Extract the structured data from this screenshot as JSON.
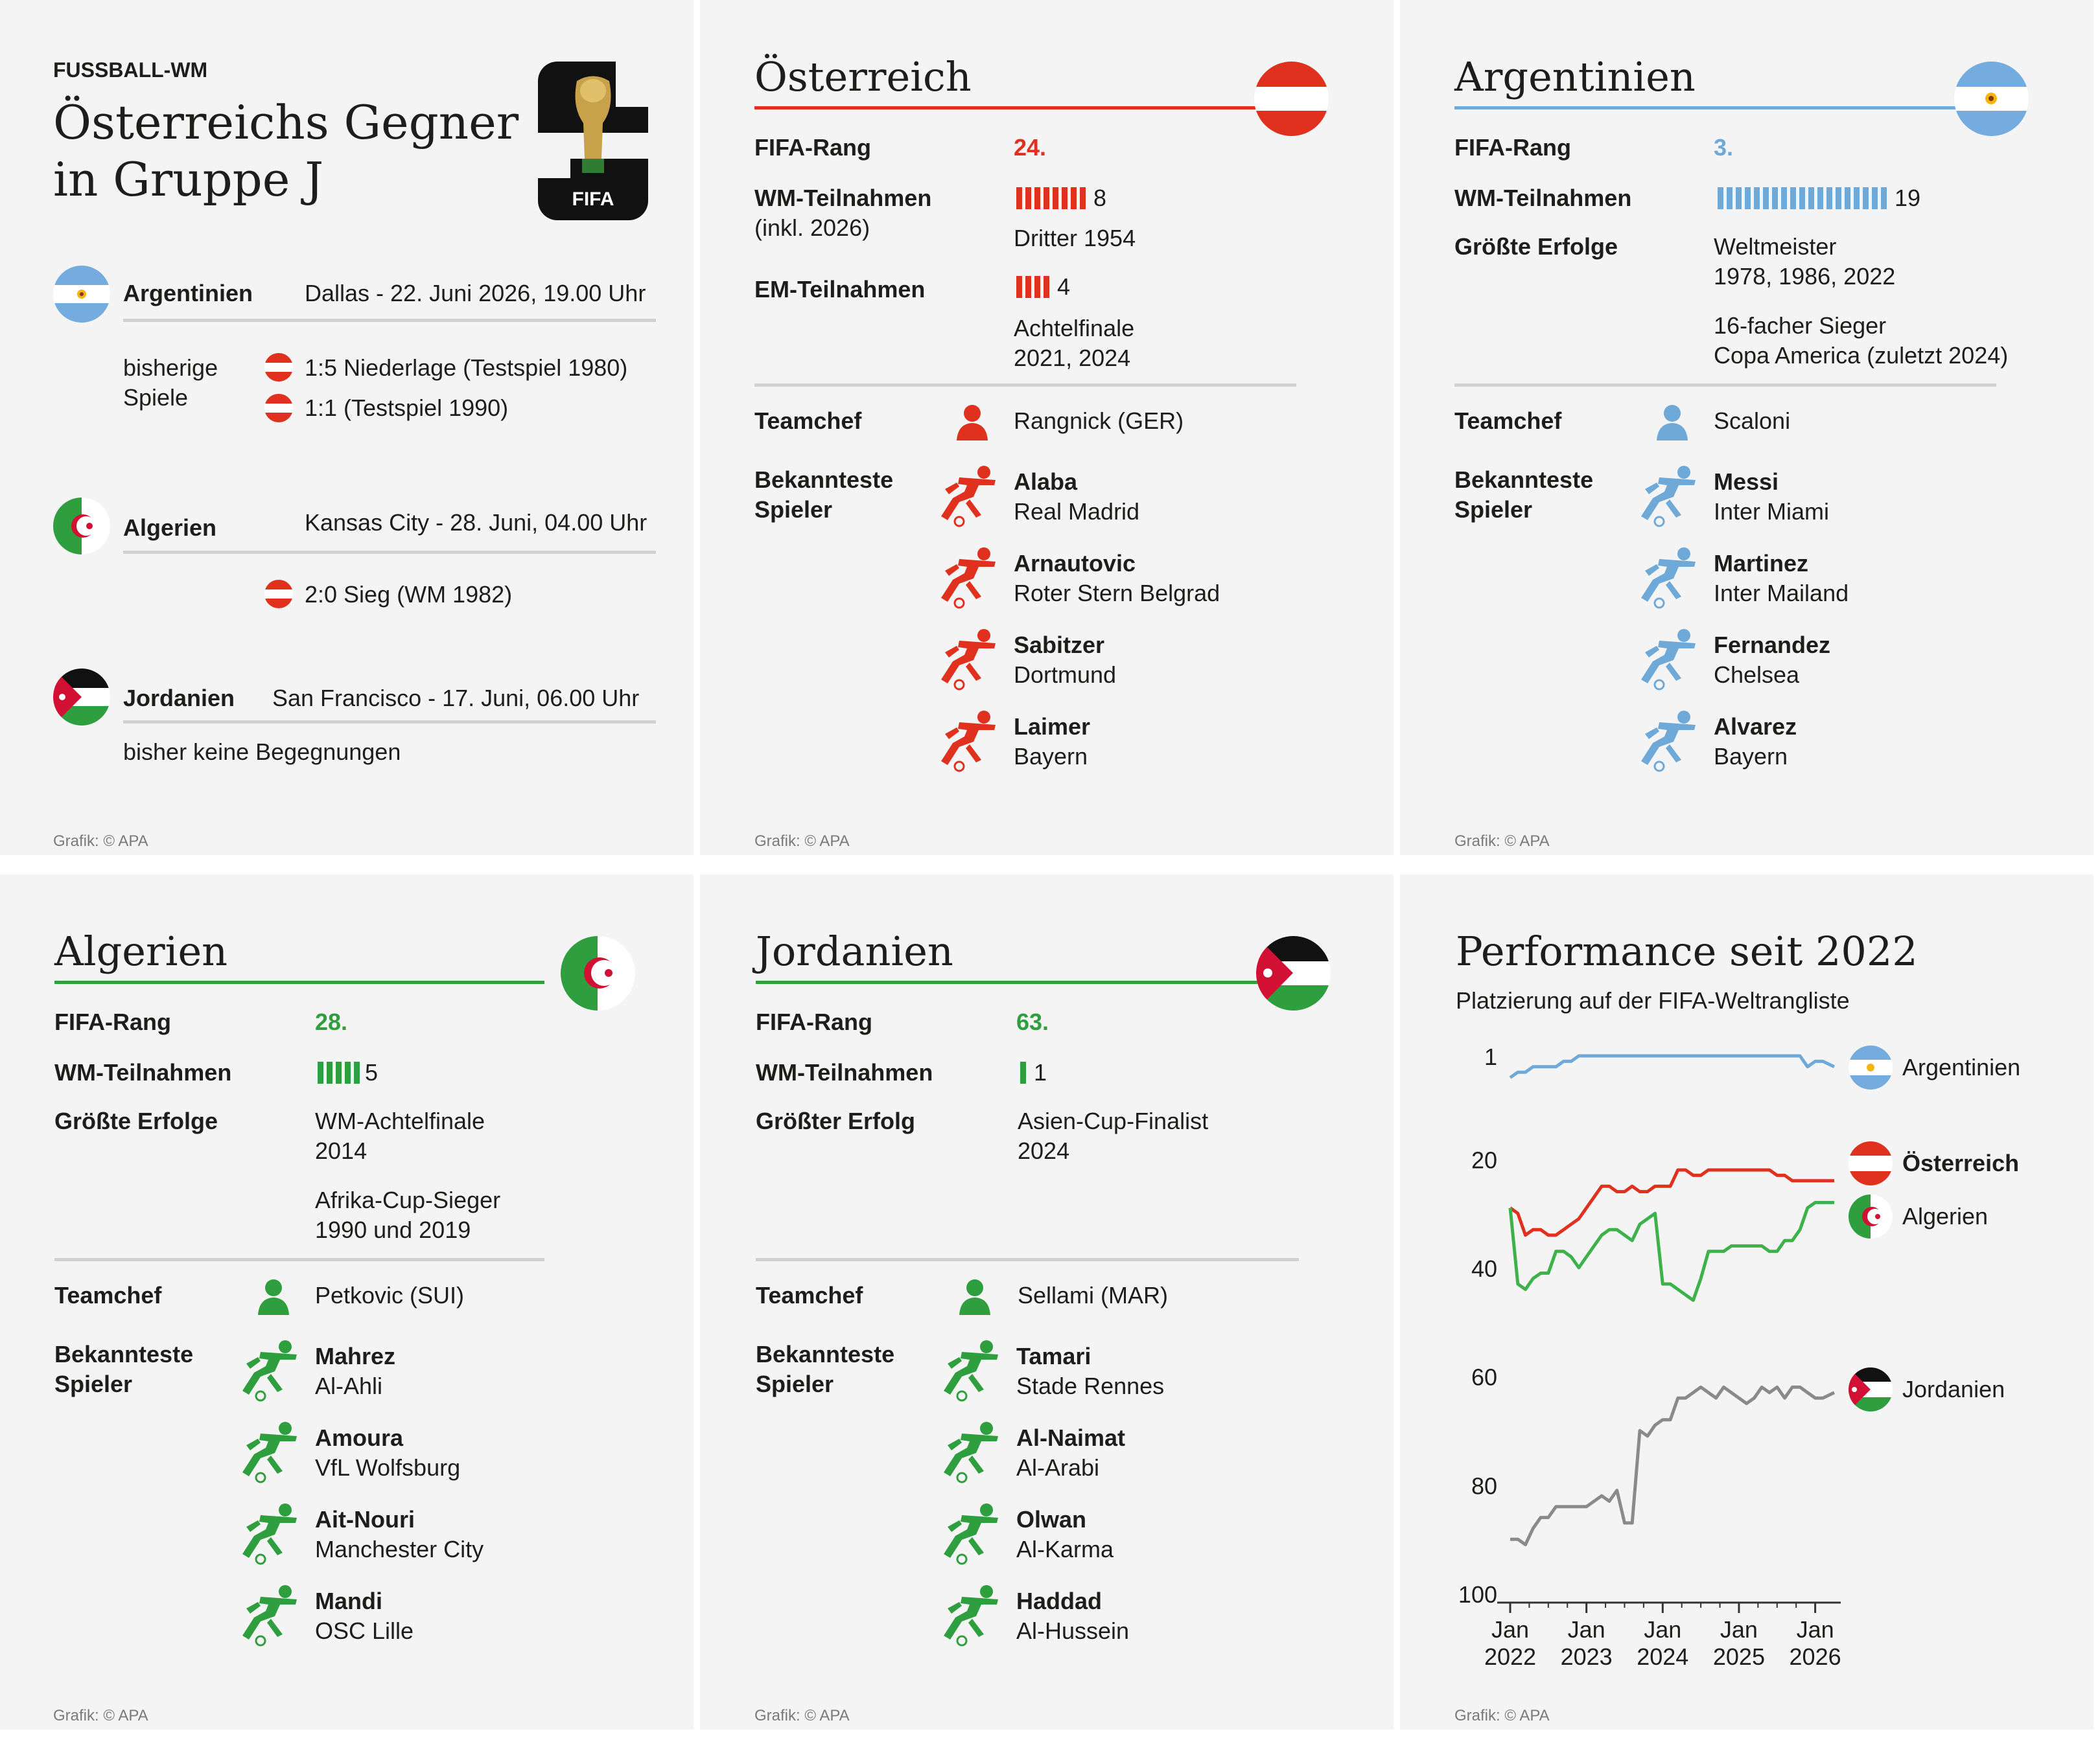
{
  "overview": {
    "kicker": "FUSSBALL-WM",
    "title_line1": "Österreichs Gegner",
    "title_line2": "in Gruppe J",
    "logo_text": "FIFA",
    "matches": [
      {
        "team": "Argentinien",
        "info": "Dallas - 22. Juni 2026, 19.00 Uhr"
      },
      {
        "team": "Algerien",
        "info": "Kansas City - 28. Juni, 04.00 Uhr"
      },
      {
        "team": "Jordanien",
        "info": "San Francisco - 17. Juni, 06.00 Uhr"
      }
    ],
    "previous_label_1": "bisherige",
    "previous_label_2": "Spiele",
    "arg_results": [
      "1:5 Niederlage (Testspiel 1980)",
      "1:1 (Testspiel 1990)"
    ],
    "alg_results": [
      "2:0 Sieg (WM 1982)"
    ],
    "jor_none": "bisher keine Begegnungen",
    "credit": "Grafik: © APA"
  },
  "austria": {
    "name": "Österreich",
    "fifa_rank_label": "FIFA-Rang",
    "fifa_rank": "24.",
    "wm_label_1": "WM-Teilnahmen",
    "wm_label_2": "(inkl. 2026)",
    "wm_count": "8",
    "wm_count_n": 8,
    "wm_best": "Dritter 1954",
    "em_label": "EM-Teilnahmen",
    "em_count": "4",
    "em_count_n": 4,
    "em_best_1": "Achtelfinale",
    "em_best_2": "2021, 2024",
    "coach_label": "Teamchef",
    "coach": "Rangnick (GER)",
    "players_label_1": "Bekannteste",
    "players_label_2": "Spieler",
    "players": [
      {
        "name": "Alaba",
        "club": "Real Madrid"
      },
      {
        "name": "Arnautovic",
        "club": "Roter Stern Belgrad"
      },
      {
        "name": "Sabitzer",
        "club": "Dortmund"
      },
      {
        "name": "Laimer",
        "club": "Bayern"
      }
    ],
    "credit": "Grafik: © APA",
    "color": "#e0301e"
  },
  "argentina": {
    "name": "Argentinien",
    "fifa_rank_label": "FIFA-Rang",
    "fifa_rank": "3.",
    "wm_label": "WM-Teilnahmen",
    "wm_count": "19",
    "wm_count_n": 19,
    "success_label": "Größte Erfolge",
    "success_1a": "Weltmeister",
    "success_1b": "1978, 1986, 2022",
    "success_2a": "16-facher Sieger",
    "success_2b": "Copa America (zuletzt 2024)",
    "coach_label": "Teamchef",
    "coach": "Scaloni",
    "players_label_1": "Bekannteste",
    "players_label_2": "Spieler",
    "players": [
      {
        "name": "Messi",
        "club": "Inter Miami"
      },
      {
        "name": "Martinez",
        "club": "Inter Mailand"
      },
      {
        "name": "Fernandez",
        "club": "Chelsea"
      },
      {
        "name": "Alvarez",
        "club": "Bayern"
      }
    ],
    "credit": "Grafik: © APA",
    "color": "#6fa9d8"
  },
  "algeria": {
    "name": "Algerien",
    "fifa_rank_label": "FIFA-Rang",
    "fifa_rank": "28.",
    "wm_label": "WM-Teilnahmen",
    "wm_count": "5",
    "wm_count_n": 5,
    "success_label": "Größte Erfolge",
    "success_1a": "WM-Achtelfinale",
    "success_1b": "2014",
    "success_2a": "Afrika-Cup-Sieger",
    "success_2b": "1990 und 2019",
    "coach_label": "Teamchef",
    "coach": "Petkovic (SUI)",
    "players_label_1": "Bekannteste",
    "players_label_2": "Spieler",
    "players": [
      {
        "name": "Mahrez",
        "club": "Al-Ahli"
      },
      {
        "name": "Amoura",
        "club": "VfL Wolfsburg"
      },
      {
        "name": "Ait-Nouri",
        "club": "Manchester City"
      },
      {
        "name": "Mandi",
        "club": "OSC Lille"
      }
    ],
    "credit": "Grafik: © APA",
    "color": "#2f9e3e"
  },
  "jordan": {
    "name": "Jordanien",
    "fifa_rank_label": "FIFA-Rang",
    "fifa_rank": "63.",
    "wm_label": "WM-Teilnahmen",
    "wm_count": "1",
    "wm_count_n": 1,
    "success_label": "Größter Erfolg",
    "success_1a": "Asien-Cup-Finalist",
    "success_1b": "2024",
    "coach_label": "Teamchef",
    "coach": "Sellami (MAR)",
    "players_label_1": "Bekannteste",
    "players_label_2": "Spieler",
    "players": [
      {
        "name": "Tamari",
        "club": "Stade Rennes"
      },
      {
        "name": "Al-Naimat",
        "club": "Al-Arabi"
      },
      {
        "name": "Olwan",
        "club": "Al-Karma"
      },
      {
        "name": "Haddad",
        "club": "Al-Hussein"
      }
    ],
    "credit": "Grafik: © APA",
    "color": "#2f9e3e"
  },
  "performance": {
    "title": "Performance seit 2022",
    "subtitle": "Platzierung auf der FIFA-Weltrangliste",
    "credit": "Grafik: © APA"
  },
  "chart_data": {
    "type": "line",
    "title": "Performance seit 2022",
    "subtitle": "Platzierung auf der FIFA-Weltrangliste",
    "ylim": [
      100,
      1
    ],
    "y_inverted": true,
    "yticks": [
      1,
      20,
      40,
      60,
      80,
      100
    ],
    "xlim": [
      2022.0,
      2026.25
    ],
    "xticks": [
      {
        "x": 2022,
        "top": "Jan",
        "bottom": "2022"
      },
      {
        "x": 2023,
        "top": "Jan",
        "bottom": "2023"
      },
      {
        "x": 2024,
        "top": "Jan",
        "bottom": "2024"
      },
      {
        "x": 2025,
        "top": "Jan",
        "bottom": "2025"
      },
      {
        "x": 2026,
        "top": "Jan",
        "bottom": "2026"
      }
    ],
    "x": [
      2022.0,
      2022.1,
      2022.2,
      2022.3,
      2022.4,
      2022.5,
      2022.6,
      2022.7,
      2022.8,
      2022.9,
      2023.0,
      2023.1,
      2023.2,
      2023.3,
      2023.4,
      2023.5,
      2023.6,
      2023.7,
      2023.8,
      2023.9,
      2024.0,
      2024.1,
      2024.2,
      2024.3,
      2024.4,
      2024.5,
      2024.6,
      2024.7,
      2024.8,
      2024.9,
      2025.0,
      2025.1,
      2025.2,
      2025.3,
      2025.4,
      2025.5,
      2025.6,
      2025.7,
      2025.8,
      2025.9,
      2026.0,
      2026.1,
      2026.25
    ],
    "series": [
      {
        "name": "Argentinien",
        "color": "#6fa9d8",
        "values": [
          5,
          4,
          4,
          3,
          3,
          3,
          3,
          2,
          2,
          1,
          1,
          1,
          1,
          1,
          1,
          1,
          1,
          1,
          1,
          1,
          1,
          1,
          1,
          1,
          1,
          1,
          1,
          1,
          1,
          1,
          1,
          1,
          1,
          1,
          1,
          1,
          1,
          1,
          1,
          3,
          2,
          2,
          3
        ]
      },
      {
        "name": "Österreich",
        "color": "#e0301e",
        "values": [
          29,
          30,
          34,
          33,
          33,
          34,
          34,
          33,
          32,
          31,
          29,
          27,
          25,
          25,
          26,
          26,
          25,
          26,
          26,
          25,
          25,
          25,
          22,
          22,
          23,
          23,
          22,
          22,
          22,
          22,
          22,
          22,
          22,
          22,
          22,
          23,
          23,
          24,
          24,
          24,
          24,
          24,
          24
        ]
      },
      {
        "name": "Algerien",
        "color": "#3db14a",
        "values": [
          29,
          43,
          44,
          42,
          41,
          41,
          37,
          37,
          38,
          40,
          38,
          36,
          34,
          33,
          33,
          34,
          35,
          32,
          31,
          30,
          43,
          43,
          44,
          45,
          46,
          42,
          37,
          37,
          37,
          36,
          36,
          36,
          36,
          36,
          37,
          37,
          35,
          35,
          33,
          29,
          28,
          28,
          28
        ]
      },
      {
        "name": "Jordanien",
        "color": "#8a8a8a",
        "values": [
          90,
          90,
          91,
          88,
          86,
          86,
          84,
          84,
          84,
          84,
          84,
          83,
          82,
          83,
          81,
          87,
          87,
          70,
          71,
          69,
          68,
          68,
          64,
          64,
          63,
          62,
          63,
          64,
          62,
          63,
          64,
          65,
          64,
          62,
          63,
          62,
          64,
          62,
          62,
          63,
          64,
          64,
          63
        ]
      }
    ]
  }
}
